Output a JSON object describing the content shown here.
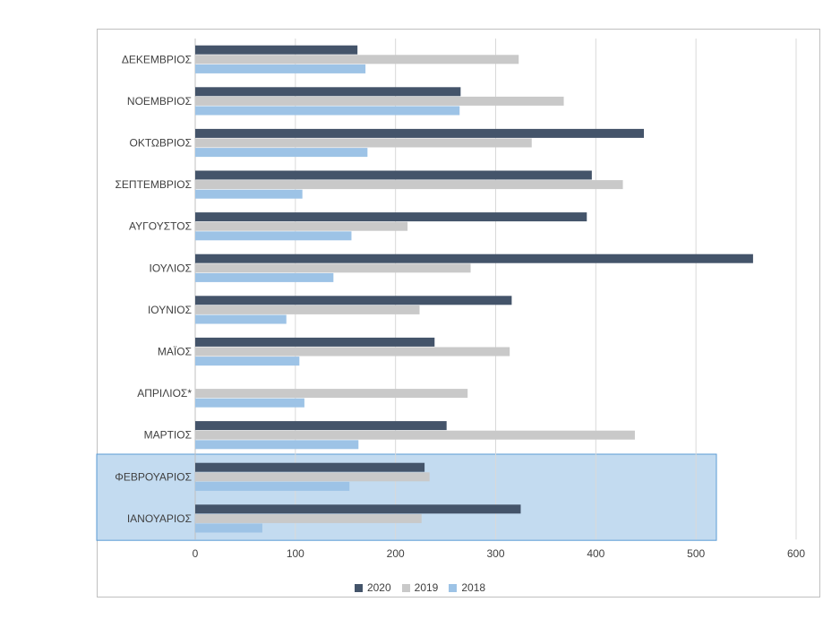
{
  "chart_data": {
    "type": "bar",
    "orientation": "horizontal",
    "categories": [
      "ΙΑΝΟΥΑΡΙΟΣ",
      "ΦΕΒΡΟΥΑΡΙΟΣ",
      "ΜΑΡΤΙΟΣ",
      "ΑΠΡΙΛΙΟΣ*",
      "ΜΑΪΟΣ",
      "ΙΟΥΝΙΟΣ",
      "ΙΟΥΛΙΟΣ",
      "ΑΥΓΟΥΣΤΟΣ",
      "ΣΕΠΤΕΜΒΡΙΟΣ",
      "ΟΚΤΩΒΡΙΟΣ",
      "ΝΟΕΜΒΡΙΟΣ",
      "ΔΕΚΕΜΒΡΙΟΣ"
    ],
    "series": [
      {
        "name": "2020",
        "color": "#44546a",
        "values": [
          325,
          229,
          251,
          null,
          239,
          316,
          557,
          391,
          396,
          448,
          265,
          162
        ]
      },
      {
        "name": "2019",
        "color": "#c9c9c9",
        "values": [
          226,
          234,
          439,
          272,
          314,
          224,
          275,
          212,
          427,
          336,
          368,
          323
        ]
      },
      {
        "name": "2018",
        "color": "#9dc3e6",
        "values": [
          67,
          154,
          163,
          109,
          104,
          91,
          138,
          156,
          107,
          172,
          264,
          170
        ]
      }
    ],
    "xlim": [
      0,
      600
    ],
    "xticks": [
      "0",
      "100",
      "200",
      "300",
      "400",
      "500",
      "600"
    ],
    "grid": true,
    "legend_position": "bottom",
    "highlight_categories": [
      "ΙΑΝΟΥΑΡΙΟΣ",
      "ΦΕΒΡΟΥΑΡΙΟΣ"
    ],
    "highlight_color": "#bdd7ee"
  }
}
